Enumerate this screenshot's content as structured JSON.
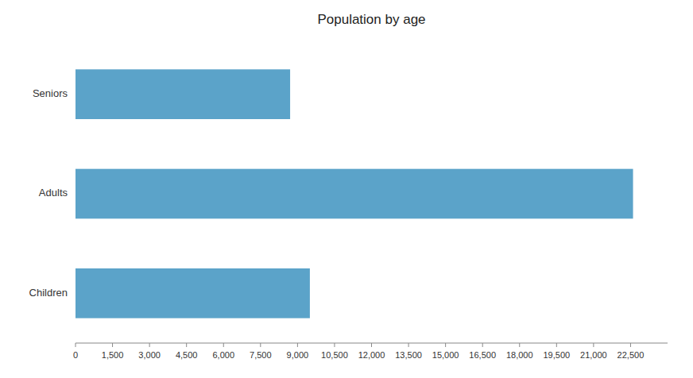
{
  "chart_data": {
    "type": "bar",
    "orientation": "horizontal",
    "title": "Population by age",
    "categories": [
      "Children",
      "Adults",
      "Seniors"
    ],
    "values": [
      9500,
      22600,
      8700
    ],
    "color": "#5BA3C9",
    "xlim": [
      0,
      24000
    ],
    "xticks": [
      0,
      {
        "value": 1500,
        "label": "1,500"
      },
      {
        "value": 3000,
        "label": "3,000"
      },
      {
        "value": 4500,
        "label": "4,500"
      },
      {
        "value": 6000,
        "label": "6,000"
      },
      {
        "value": 7500,
        "label": "7,500"
      },
      {
        "value": 9000,
        "label": "9,000"
      },
      {
        "value": 10500,
        "label": "10,500"
      },
      {
        "value": 12000,
        "label": "12,000"
      },
      {
        "value": 13500,
        "label": "13,500"
      },
      {
        "value": 15000,
        "label": "15,000"
      },
      {
        "value": 16500,
        "label": "16,500"
      },
      {
        "value": 18000,
        "label": "18,000"
      },
      {
        "value": 19500,
        "label": "19,500"
      },
      {
        "value": 21000,
        "label": "21,000"
      },
      {
        "value": 22500,
        "label": "22,500"
      }
    ],
    "grid": false
  }
}
